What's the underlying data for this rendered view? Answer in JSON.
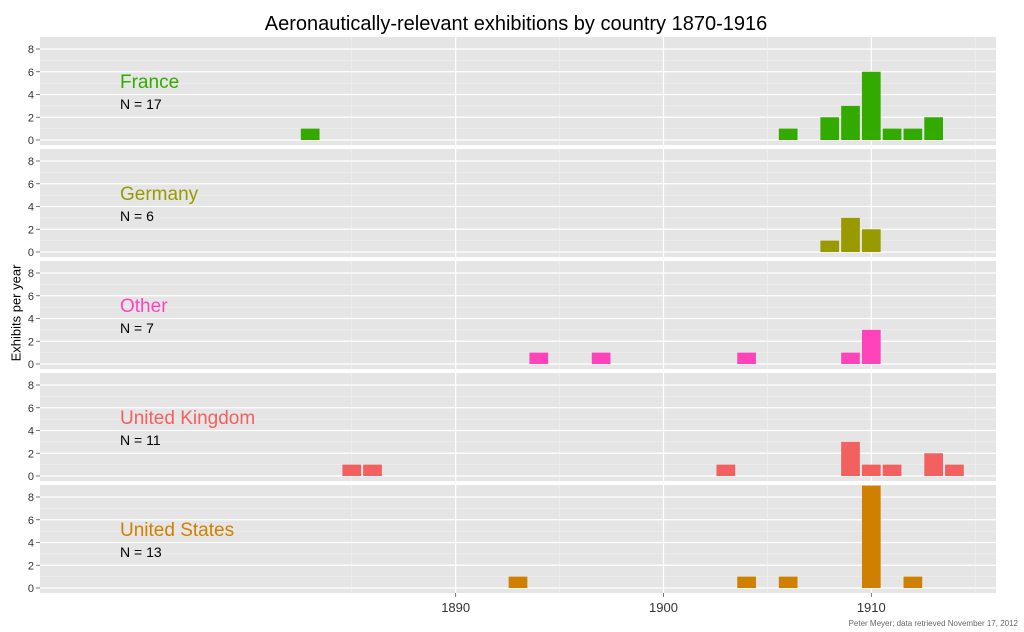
{
  "chart_data": {
    "type": "bar",
    "title": "Aeronautically-relevant exhibitions by country 1870-1916",
    "ylabel": "Exhibits per year",
    "xlabel": "",
    "credit": "Peter Meyer; data retrieved November 17, 2012",
    "xlim": [
      1870,
      1916
    ],
    "ylim": [
      0,
      9
    ],
    "x_ticks": [
      1890,
      1900,
      1910
    ],
    "y_ticks": [
      0,
      2,
      4,
      6,
      8
    ],
    "grid": true,
    "facets": "stacked vertically, one panel per country",
    "panels": [
      {
        "name": "France",
        "n_label": "N = 17",
        "color": "#33AA00",
        "points": [
          {
            "year": 1883,
            "count": 1
          },
          {
            "year": 1906,
            "count": 1
          },
          {
            "year": 1908,
            "count": 2
          },
          {
            "year": 1909,
            "count": 3
          },
          {
            "year": 1910,
            "count": 6
          },
          {
            "year": 1911,
            "count": 1
          },
          {
            "year": 1912,
            "count": 1
          },
          {
            "year": 1913,
            "count": 2
          }
        ]
      },
      {
        "name": "Germany",
        "n_label": "N = 6",
        "color": "#999900",
        "points": [
          {
            "year": 1908,
            "count": 1
          },
          {
            "year": 1909,
            "count": 3
          },
          {
            "year": 1910,
            "count": 2
          }
        ]
      },
      {
        "name": "Other",
        "n_label": "N = 7",
        "color": "#FF44BB",
        "points": [
          {
            "year": 1894,
            "count": 1
          },
          {
            "year": 1897,
            "count": 1
          },
          {
            "year": 1904,
            "count": 1
          },
          {
            "year": 1909,
            "count": 1
          },
          {
            "year": 1910,
            "count": 3
          }
        ]
      },
      {
        "name": "United Kingdom",
        "n_label": "N = 11",
        "color": "#F26060",
        "points": [
          {
            "year": 1885,
            "count": 1
          },
          {
            "year": 1886,
            "count": 1
          },
          {
            "year": 1903,
            "count": 1
          },
          {
            "year": 1909,
            "count": 3
          },
          {
            "year": 1910,
            "count": 1
          },
          {
            "year": 1911,
            "count": 1
          },
          {
            "year": 1913,
            "count": 2
          },
          {
            "year": 1914,
            "count": 1
          }
        ]
      },
      {
        "name": "United States",
        "n_label": "N = 13",
        "color": "#D08000",
        "points": [
          {
            "year": 1893,
            "count": 1
          },
          {
            "year": 1904,
            "count": 1
          },
          {
            "year": 1906,
            "count": 1
          },
          {
            "year": 1910,
            "count": 9
          },
          {
            "year": 1912,
            "count": 1
          }
        ]
      }
    ]
  }
}
